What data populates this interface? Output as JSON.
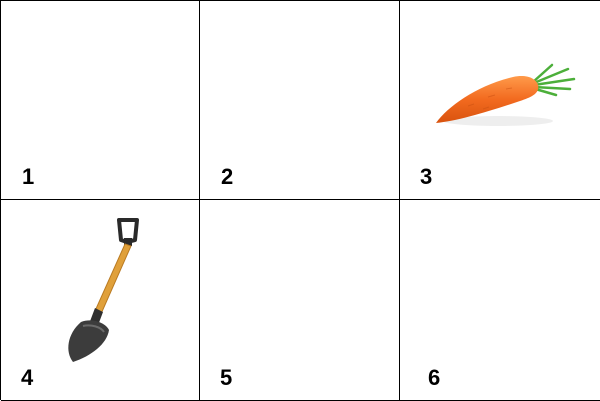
{
  "cells": [
    {
      "number": "1",
      "image": ""
    },
    {
      "number": "2",
      "image": ""
    },
    {
      "number": "3",
      "image": "carrot-icon"
    },
    {
      "number": "4",
      "image": "shovel-icon"
    },
    {
      "number": "5",
      "image": ""
    },
    {
      "number": "6",
      "image": ""
    }
  ],
  "colors": {
    "border": "#000000",
    "background": "#ffffff",
    "carrot": "#f26a1f",
    "carrot_leaves": "#4caf3a",
    "shovel_handle": "#e0a03a",
    "shovel_blade": "#3c3c3c"
  }
}
